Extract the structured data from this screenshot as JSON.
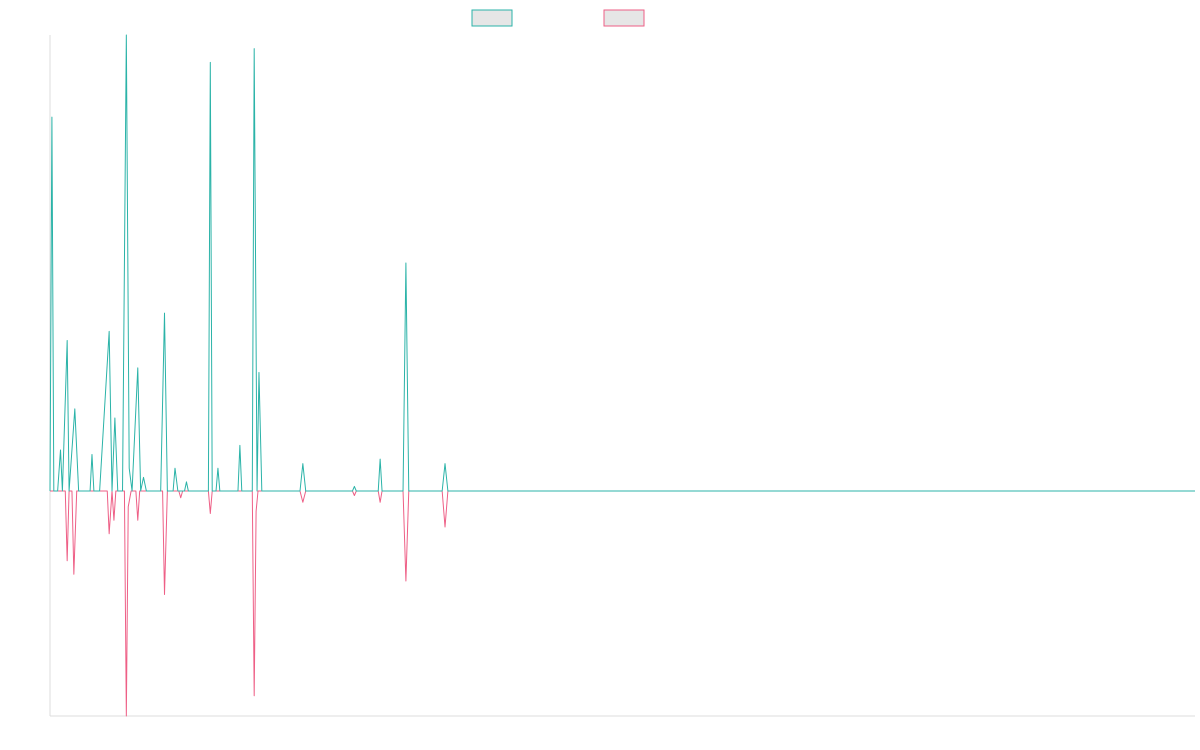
{
  "chart_data": {
    "type": "line",
    "title": "",
    "xlabel": "",
    "ylabel": "",
    "grid": false,
    "legend_placement": "top-center",
    "x_range": [
      0,
      1200
    ],
    "ylim": [
      -1.0,
      1.0
    ],
    "colors": {
      "series_a": "#2bb3a8",
      "series_b": "#ee5f86",
      "legend_fill": "#e6e6e6",
      "axis": "#dcdcdc"
    },
    "series": [
      {
        "color_key": "series_a",
        "points": [
          [
            0,
            0.0
          ],
          [
            2,
            0.82
          ],
          [
            4,
            0.0
          ],
          [
            8,
            0.0
          ],
          [
            11,
            0.09
          ],
          [
            13,
            0.0
          ],
          [
            18,
            0.33
          ],
          [
            20,
            0.0
          ],
          [
            26,
            0.18
          ],
          [
            30,
            0.0
          ],
          [
            42,
            0.0
          ],
          [
            44,
            0.08
          ],
          [
            46,
            0.0
          ],
          [
            52,
            0.0
          ],
          [
            62,
            0.35
          ],
          [
            65,
            0.0
          ],
          [
            68,
            0.16
          ],
          [
            71,
            0.0
          ],
          [
            76,
            0.0
          ],
          [
            80,
            1.0
          ],
          [
            83,
            0.05
          ],
          [
            86,
            0.0
          ],
          [
            92,
            0.27
          ],
          [
            95,
            0.0
          ],
          [
            98,
            0.03
          ],
          [
            101,
            0.0
          ],
          [
            116,
            0.0
          ],
          [
            120,
            0.39
          ],
          [
            123,
            0.0
          ],
          [
            129,
            0.0
          ],
          [
            131,
            0.05
          ],
          [
            134,
            0.0
          ],
          [
            141,
            0.0
          ],
          [
            143,
            0.02
          ],
          [
            145,
            0.0
          ],
          [
            166,
            0.0
          ],
          [
            168,
            0.94
          ],
          [
            170,
            0.0
          ],
          [
            174,
            0.0
          ],
          [
            176,
            0.05
          ],
          [
            178,
            0.0
          ],
          [
            197,
            0.0
          ],
          [
            199,
            0.1
          ],
          [
            201,
            0.0
          ],
          [
            212,
            0.0
          ],
          [
            214,
            0.97
          ],
          [
            217,
            0.0
          ],
          [
            219,
            0.26
          ],
          [
            222,
            0.0
          ],
          [
            262,
            0.0
          ],
          [
            265,
            0.06
          ],
          [
            268,
            0.0
          ],
          [
            317,
            0.0
          ],
          [
            319,
            0.01
          ],
          [
            321,
            0.0
          ],
          [
            344,
            0.0
          ],
          [
            346,
            0.07
          ],
          [
            348,
            0.0
          ],
          [
            370,
            0.0
          ],
          [
            373,
            0.5
          ],
          [
            376,
            0.0
          ],
          [
            411,
            0.0
          ],
          [
            414,
            0.06
          ],
          [
            417,
            0.0
          ],
          [
            1200,
            0.0
          ]
        ]
      },
      {
        "color_key": "series_b",
        "points": [
          [
            0,
            0.0
          ],
          [
            16,
            0.0
          ],
          [
            18,
            -0.31
          ],
          [
            20,
            0.0
          ],
          [
            23,
            0.0
          ],
          [
            25,
            -0.37
          ],
          [
            28,
            0.0
          ],
          [
            60,
            0.0
          ],
          [
            62,
            -0.19
          ],
          [
            65,
            0.0
          ],
          [
            67,
            -0.13
          ],
          [
            69,
            0.0
          ],
          [
            78,
            0.0
          ],
          [
            80,
            -1.0
          ],
          [
            82,
            -0.07
          ],
          [
            85,
            0.0
          ],
          [
            90,
            0.0
          ],
          [
            92,
            -0.13
          ],
          [
            94,
            0.0
          ],
          [
            118,
            0.0
          ],
          [
            120,
            -0.46
          ],
          [
            123,
            0.0
          ],
          [
            135,
            0.0
          ],
          [
            137,
            -0.03
          ],
          [
            139,
            0.0
          ],
          [
            166,
            0.0
          ],
          [
            168,
            -0.1
          ],
          [
            170,
            0.0
          ],
          [
            212,
            0.0
          ],
          [
            214,
            -0.91
          ],
          [
            216,
            -0.09
          ],
          [
            218,
            0.0
          ],
          [
            262,
            0.0
          ],
          [
            265,
            -0.05
          ],
          [
            268,
            0.0
          ],
          [
            317,
            0.0
          ],
          [
            319,
            -0.02
          ],
          [
            321,
            0.0
          ],
          [
            344,
            0.0
          ],
          [
            346,
            -0.05
          ],
          [
            348,
            0.0
          ],
          [
            370,
            0.0
          ],
          [
            373,
            -0.4
          ],
          [
            376,
            0.0
          ],
          [
            411,
            0.0
          ],
          [
            414,
            -0.16
          ],
          [
            417,
            0.0
          ],
          [
            1200,
            0.0
          ]
        ]
      }
    ]
  }
}
